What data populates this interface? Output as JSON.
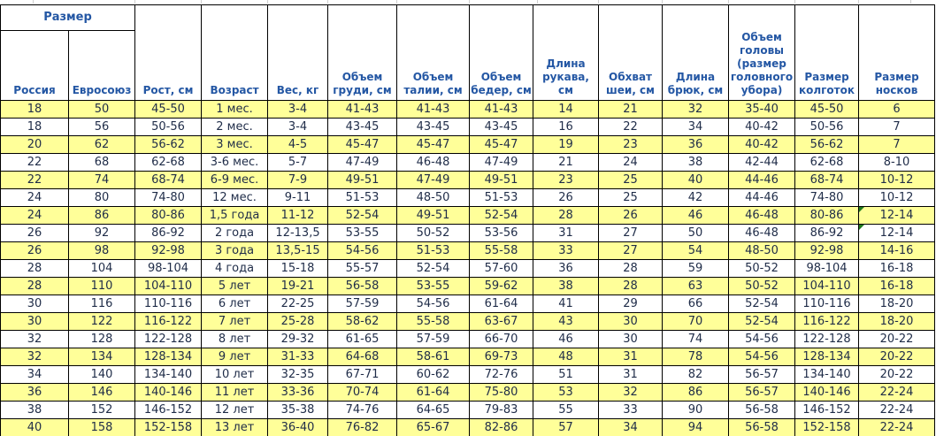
{
  "table": {
    "title_semantic": "children-clothing-size-chart",
    "group_header": "Размер",
    "columns": [
      "Россия",
      "Евросоюз",
      "Рост, см",
      "Возраст",
      "Вес, кг",
      "Объем груди, см",
      "Объем талии, см",
      "Объем бедер, см",
      "Длина рукава, см",
      "Обхват шеи, см",
      "Длина брюк, см",
      "Объем головы (размер головного убора)",
      "Размер колготок",
      "Размер носков"
    ],
    "rows": [
      [
        "18",
        "50",
        "45-50",
        "1 мес.",
        "3-4",
        "41-43",
        "41-43",
        "41-43",
        "14",
        "21",
        "32",
        "35-40",
        "45-50",
        "6"
      ],
      [
        "18",
        "56",
        "50-56",
        "2 мес.",
        "3-4",
        "43-45",
        "43-45",
        "43-45",
        "16",
        "22",
        "34",
        "40-42",
        "50-56",
        "7"
      ],
      [
        "20",
        "62",
        "56-62",
        "3 мес.",
        "4-5",
        "45-47",
        "45-47",
        "45-47",
        "19",
        "23",
        "36",
        "40-42",
        "56-62",
        "7"
      ],
      [
        "22",
        "68",
        "62-68",
        "3-6 мес.",
        "5-7",
        "47-49",
        "46-48",
        "47-49",
        "21",
        "24",
        "38",
        "42-44",
        "62-68",
        "8-10"
      ],
      [
        "22",
        "74",
        "68-74",
        "6-9 мес.",
        "7-9",
        "49-51",
        "47-49",
        "49-51",
        "23",
        "25",
        "40",
        "44-46",
        "68-74",
        "10-12"
      ],
      [
        "24",
        "80",
        "74-80",
        "12 мес.",
        "9-11",
        "51-53",
        "48-50",
        "51-53",
        "26",
        "25",
        "42",
        "44-46",
        "74-80",
        "10-12"
      ],
      [
        "24",
        "86",
        "80-86",
        "1,5 года",
        "11-12",
        "52-54",
        "49-51",
        "52-54",
        "28",
        "26",
        "46",
        "46-48",
        "80-86",
        "12-14"
      ],
      [
        "26",
        "92",
        "86-92",
        "2 года",
        "12-13,5",
        "53-55",
        "50-52",
        "53-56",
        "31",
        "27",
        "50",
        "46-48",
        "86-92",
        "12-14"
      ],
      [
        "26",
        "98",
        "92-98",
        "3 года",
        "13,5-15",
        "54-56",
        "51-53",
        "55-58",
        "33",
        "27",
        "54",
        "48-50",
        "92-98",
        "14-16"
      ],
      [
        "28",
        "104",
        "98-104",
        "4 года",
        "15-18",
        "55-57",
        "52-54",
        "57-60",
        "36",
        "28",
        "59",
        "50-52",
        "98-104",
        "16-18"
      ],
      [
        "28",
        "110",
        "104-110",
        "5 лет",
        "19-21",
        "56-58",
        "53-55",
        "59-62",
        "38",
        "28",
        "63",
        "50-52",
        "104-110",
        "16-18"
      ],
      [
        "30",
        "116",
        "110-116",
        "6 лет",
        "22-25",
        "57-59",
        "54-56",
        "61-64",
        "41",
        "29",
        "66",
        "52-54",
        "110-116",
        "18-20"
      ],
      [
        "30",
        "122",
        "116-122",
        "7 лет",
        "25-28",
        "58-62",
        "55-58",
        "63-67",
        "43",
        "30",
        "70",
        "52-54",
        "116-122",
        "18-20"
      ],
      [
        "32",
        "128",
        "122-128",
        "8 лет",
        "29-32",
        "61-65",
        "57-59",
        "66-70",
        "46",
        "30",
        "74",
        "54-56",
        "122-128",
        "20-22"
      ],
      [
        "32",
        "134",
        "128-134",
        "9 лет",
        "31-33",
        "64-68",
        "58-61",
        "69-73",
        "48",
        "31",
        "78",
        "54-56",
        "128-134",
        "20-22"
      ],
      [
        "34",
        "140",
        "134-140",
        "10 лет",
        "32-35",
        "67-71",
        "60-62",
        "72-76",
        "51",
        "31",
        "82",
        "56-57",
        "134-140",
        "20-22"
      ],
      [
        "36",
        "146",
        "140-146",
        "11 лет",
        "33-36",
        "70-74",
        "61-64",
        "75-80",
        "53",
        "32",
        "86",
        "56-57",
        "140-146",
        "22-24"
      ],
      [
        "38",
        "152",
        "146-152",
        "12 лет",
        "35-38",
        "74-76",
        "64-65",
        "79-83",
        "55",
        "33",
        "90",
        "56-58",
        "146-152",
        "22-24"
      ],
      [
        "40",
        "158",
        "152-158",
        "13 лет",
        "36-40",
        "76-82",
        "65-67",
        "82-86",
        "57",
        "34",
        "94",
        "56-58",
        "152-158",
        "22-24"
      ]
    ],
    "stripe_pattern": "odd rows highlighted",
    "corner_markers": [
      {
        "row": 7,
        "col": 14
      },
      {
        "row": 8,
        "col": 14
      }
    ],
    "colors": {
      "header_text": "#2457A4",
      "body_text": "#1F2C48",
      "stripe_fill": "#FFFF99",
      "cell_border": "#000000",
      "marker_green": "#1E7A1E",
      "gridline_stub": "#CFCFCF"
    }
  }
}
